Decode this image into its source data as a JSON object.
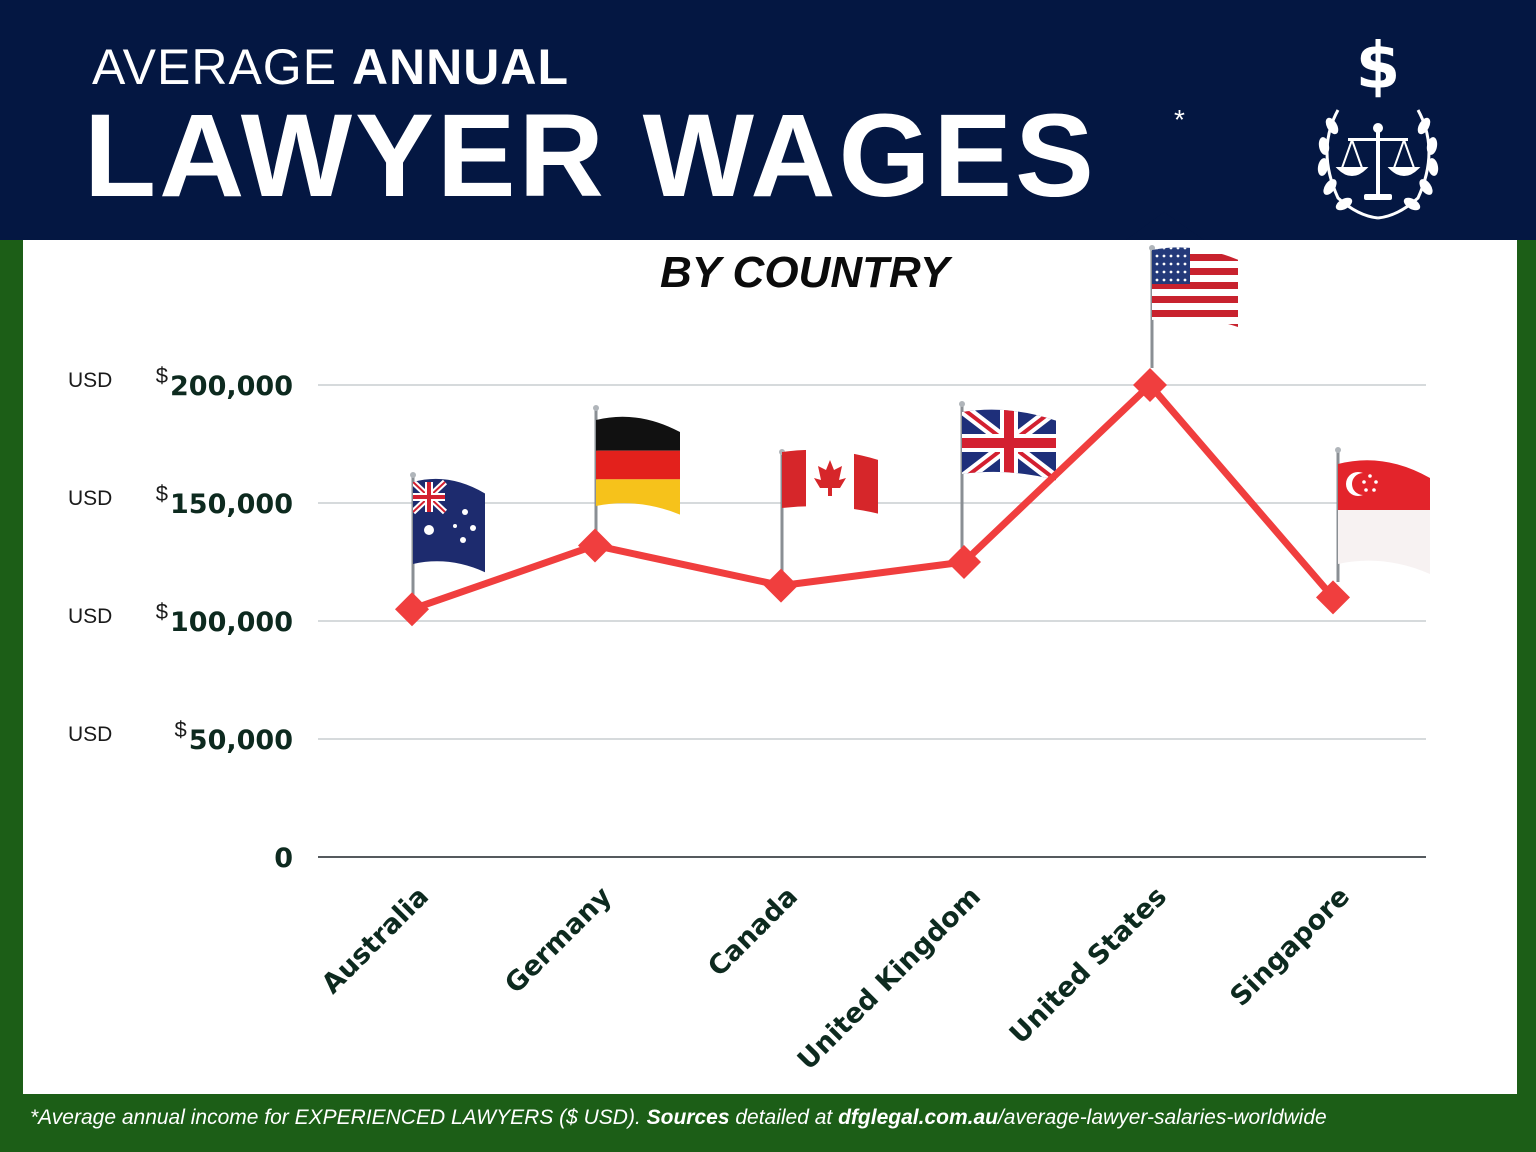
{
  "header": {
    "title_prefix": "AVERAGE",
    "title_emphasis": "ANNUAL",
    "title_main": "LAWYER WAGES",
    "title_asterisk": "*",
    "logo_symbol": "$",
    "logo_icon": "scales-of-justice-wreath-icon"
  },
  "subtitle": "BY COUNTRY",
  "colors": {
    "header_bg": "#041742",
    "border_green": "#1c5e17",
    "line": "#f03e3e",
    "grid": "#c8cdd0"
  },
  "chart_data": {
    "type": "line",
    "categories": [
      "Australia",
      "Germany",
      "Canada",
      "United Kingdom",
      "United States",
      "Singapore"
    ],
    "series": [
      {
        "values": [
          105000,
          132000,
          115000,
          125000,
          200000,
          110000
        ]
      }
    ],
    "ylim": [
      0,
      200000
    ],
    "yticks": [
      {
        "value": 0,
        "unit": "",
        "dollar": "",
        "label": "0"
      },
      {
        "value": 50000,
        "unit": "USD",
        "dollar": "$",
        "label": "50,000"
      },
      {
        "value": 100000,
        "unit": "USD",
        "dollar": "$",
        "label": "100,000"
      },
      {
        "value": 150000,
        "unit": "USD",
        "dollar": "$",
        "label": "150,000"
      },
      {
        "value": 200000,
        "unit": "USD",
        "dollar": "$",
        "label": "200,000"
      }
    ],
    "grid": true,
    "marker": "diamond",
    "point_flags": [
      "australia-flag-icon",
      "germany-flag-icon",
      "canada-flag-icon",
      "united-kingdom-flag-icon",
      "united-states-flag-icon",
      "singapore-flag-icon"
    ]
  },
  "footer": {
    "note": "*Average annual income for EXPERIENCED LAWYERS ($ USD). ",
    "sources_label": "Sources",
    "detailed_at": " detailed at ",
    "domain": "dfglegal.com.au",
    "path": "/average-lawyer-salaries-worldwide"
  }
}
